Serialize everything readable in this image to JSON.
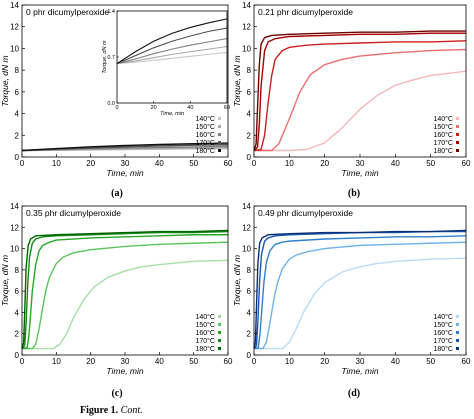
{
  "chart_data": [
    {
      "type": "line",
      "panel_label": "(a)",
      "title": "0 phr dicumylperoxide",
      "xlabel": "Time, min",
      "ylabel": "Torque, dN m",
      "xlim": [
        0,
        60
      ],
      "ylim": [
        0,
        14
      ],
      "xticks": [
        "0",
        "10",
        "20",
        "30",
        "40",
        "50",
        "60"
      ],
      "yticks": [
        "0",
        "2",
        "4",
        "6",
        "8",
        "10",
        "12",
        "14"
      ],
      "legend_position": "bottom-right",
      "series": [
        {
          "name": "140°C",
          "color": "#c8c8c8",
          "x": [
            0,
            10,
            20,
            30,
            40,
            50,
            60
          ],
          "y": [
            0.6,
            0.62,
            0.65,
            0.68,
            0.71,
            0.74,
            0.77
          ]
        },
        {
          "name": "150°C",
          "color": "#a8a8a8",
          "x": [
            0,
            10,
            20,
            30,
            40,
            50,
            60
          ],
          "y": [
            0.6,
            0.64,
            0.69,
            0.74,
            0.78,
            0.82,
            0.86
          ]
        },
        {
          "name": "160°C",
          "color": "#808080",
          "x": [
            0,
            10,
            20,
            30,
            40,
            50,
            60
          ],
          "y": [
            0.6,
            0.67,
            0.75,
            0.82,
            0.88,
            0.93,
            0.98
          ]
        },
        {
          "name": "170°C",
          "color": "#505050",
          "x": [
            0,
            10,
            20,
            30,
            40,
            50,
            60
          ],
          "y": [
            0.6,
            0.72,
            0.84,
            0.94,
            1.02,
            1.09,
            1.14
          ]
        },
        {
          "name": "180°C",
          "color": "#111111",
          "x": [
            0,
            10,
            20,
            30,
            40,
            50,
            60
          ],
          "y": [
            0.6,
            0.78,
            0.94,
            1.06,
            1.15,
            1.22,
            1.28
          ]
        }
      ],
      "inset": {
        "xlabel": "Time, min",
        "ylabel": "Torque, dN m",
        "xlim": [
          0,
          60
        ],
        "ylim": [
          0.0,
          1.4
        ],
        "xticks": [
          "0",
          "20",
          "40",
          "60"
        ],
        "yticks": [
          "0.0",
          "0.7",
          "1.4"
        ]
      }
    },
    {
      "type": "line",
      "panel_label": "(b)",
      "title": "0.21 phr dicumylperoxide",
      "xlabel": "Time, min",
      "ylabel": "Torque, dN m",
      "xlim": [
        0,
        60
      ],
      "ylim": [
        0,
        14
      ],
      "xticks": [
        "0",
        "10",
        "20",
        "30",
        "40",
        "50",
        "60"
      ],
      "yticks": [
        "0",
        "2",
        "4",
        "6",
        "8",
        "10",
        "12",
        "14"
      ],
      "legend_position": "bottom-right",
      "series": [
        {
          "name": "140°C",
          "color": "#f4b7b7",
          "x": [
            0,
            10,
            15,
            20,
            25,
            30,
            35,
            40,
            45,
            50,
            60
          ],
          "y": [
            0.6,
            0.6,
            0.7,
            1.3,
            2.7,
            4.4,
            5.7,
            6.6,
            7.1,
            7.5,
            7.9
          ]
        },
        {
          "name": "150°C",
          "color": "#e97070",
          "x": [
            0,
            5,
            7,
            10,
            13,
            16,
            20,
            25,
            30,
            40,
            50,
            60
          ],
          "y": [
            0.6,
            0.6,
            1.2,
            3.5,
            6.0,
            7.6,
            8.5,
            9.0,
            9.3,
            9.6,
            9.8,
            9.9
          ]
        },
        {
          "name": "160°C",
          "color": "#cc1f1f",
          "x": [
            0,
            2,
            3,
            4,
            5,
            6,
            8,
            10,
            15,
            20,
            30,
            40,
            50,
            60
          ],
          "y": [
            0.6,
            0.7,
            2.0,
            5.0,
            7.5,
            9.0,
            9.8,
            10.1,
            10.3,
            10.4,
            10.5,
            10.6,
            10.6,
            10.7
          ]
        },
        {
          "name": "170°C",
          "color": "#a30000",
          "x": [
            0,
            1,
            1.5,
            2,
            3,
            4,
            6,
            10,
            20,
            30,
            40,
            50,
            60
          ],
          "y": [
            0.6,
            0.9,
            3.0,
            6.5,
            9.8,
            10.6,
            10.9,
            11.1,
            11.2,
            11.3,
            11.3,
            11.4,
            11.4
          ]
        },
        {
          "name": "180°C",
          "color": "#6e0000",
          "x": [
            0,
            0.6,
            1,
            1.5,
            2,
            3,
            5,
            10,
            20,
            30,
            40,
            50,
            60
          ],
          "y": [
            0.6,
            1.2,
            4.5,
            8.5,
            10.4,
            11.0,
            11.2,
            11.3,
            11.4,
            11.5,
            11.5,
            11.6,
            11.6
          ]
        }
      ]
    },
    {
      "type": "line",
      "panel_label": "(c)",
      "title": "0.35 phr dicumylperoxide",
      "xlabel": "Time, min",
      "ylabel": "Torque, dN m",
      "xlim": [
        0,
        60
      ],
      "ylim": [
        0,
        14
      ],
      "xticks": [
        "0",
        "10",
        "20",
        "30",
        "40",
        "50",
        "60"
      ],
      "yticks": [
        "0",
        "2",
        "4",
        "6",
        "8",
        "10",
        "12",
        "14"
      ],
      "legend_position": "bottom-right",
      "series": [
        {
          "name": "140°C",
          "color": "#a6dea6",
          "x": [
            0,
            9,
            11,
            13,
            15,
            18,
            21,
            25,
            30,
            35,
            40,
            50,
            60
          ],
          "y": [
            0.6,
            0.6,
            1.0,
            2.0,
            3.5,
            5.2,
            6.4,
            7.3,
            7.9,
            8.3,
            8.5,
            8.8,
            8.9
          ]
        },
        {
          "name": "150°C",
          "color": "#5cc45c",
          "x": [
            0,
            3,
            4,
            5,
            6,
            7,
            8,
            10,
            12,
            15,
            20,
            30,
            40,
            50,
            60
          ],
          "y": [
            0.6,
            0.6,
            1.0,
            2.5,
            4.4,
            6.1,
            7.3,
            8.6,
            9.2,
            9.6,
            9.9,
            10.2,
            10.4,
            10.5,
            10.6
          ]
        },
        {
          "name": "160°C",
          "color": "#28a828",
          "x": [
            0,
            1.5,
            2,
            2.5,
            3,
            4,
            5,
            6,
            8,
            10,
            20,
            30,
            40,
            50,
            60
          ],
          "y": [
            0.6,
            0.7,
            1.8,
            3.8,
            6.0,
            8.5,
            9.8,
            10.3,
            10.6,
            10.8,
            11.0,
            11.1,
            11.2,
            11.3,
            11.3
          ]
        },
        {
          "name": "170°C",
          "color": "#138a13",
          "x": [
            0,
            0.8,
            1.2,
            1.7,
            2.2,
            3,
            4,
            6,
            10,
            20,
            30,
            40,
            50,
            60
          ],
          "y": [
            0.6,
            0.9,
            3.0,
            6.8,
            9.2,
            10.5,
            10.9,
            11.1,
            11.2,
            11.3,
            11.4,
            11.5,
            11.5,
            11.6
          ]
        },
        {
          "name": "180°C",
          "color": "#006400",
          "x": [
            0,
            0.5,
            0.8,
            1.2,
            1.8,
            2.5,
            4,
            10,
            20,
            30,
            40,
            50,
            60
          ],
          "y": [
            0.6,
            1.2,
            4.2,
            8.2,
            10.3,
            10.9,
            11.2,
            11.3,
            11.4,
            11.5,
            11.6,
            11.6,
            11.7
          ]
        }
      ]
    },
    {
      "type": "line",
      "panel_label": "(d)",
      "title": "0.49 phr dicumylperoxide",
      "xlabel": "Time, min",
      "ylabel": "Torque, dN m",
      "xlim": [
        0,
        60
      ],
      "ylim": [
        0,
        14
      ],
      "xticks": [
        "0",
        "10",
        "20",
        "30",
        "40",
        "50",
        "60"
      ],
      "yticks": [
        "0",
        "2",
        "4",
        "6",
        "8",
        "10",
        "12",
        "14"
      ],
      "legend_position": "bottom-right",
      "series": [
        {
          "name": "140°C",
          "color": "#b9dbf5",
          "x": [
            0,
            8,
            10,
            12,
            14,
            17,
            20,
            25,
            30,
            35,
            40,
            50,
            60
          ],
          "y": [
            0.6,
            0.6,
            1.2,
            2.5,
            4.0,
            5.7,
            6.8,
            7.8,
            8.3,
            8.6,
            8.8,
            9.0,
            9.1
          ]
        },
        {
          "name": "150°C",
          "color": "#6fb2e6",
          "x": [
            0,
            2.5,
            3.5,
            4.5,
            5.5,
            6.5,
            8,
            10,
            12,
            15,
            20,
            30,
            40,
            50,
            60
          ],
          "y": [
            0.6,
            0.6,
            1.2,
            3.0,
            5.0,
            6.6,
            8.1,
            9.0,
            9.4,
            9.7,
            10.0,
            10.3,
            10.4,
            10.5,
            10.6
          ]
        },
        {
          "name": "160°C",
          "color": "#2f80cc",
          "x": [
            0,
            1.2,
            1.7,
            2.2,
            2.8,
            3.5,
            4.5,
            6,
            8,
            10,
            20,
            30,
            40,
            50,
            60
          ],
          "y": [
            0.6,
            0.7,
            2.0,
            4.2,
            6.8,
            8.7,
            9.8,
            10.4,
            10.6,
            10.7,
            10.9,
            11.0,
            11.1,
            11.1,
            11.2
          ]
        },
        {
          "name": "170°C",
          "color": "#1b55a8",
          "x": [
            0,
            0.7,
            1.1,
            1.6,
            2.1,
            3,
            4,
            6,
            10,
            20,
            30,
            40,
            50,
            60
          ],
          "y": [
            0.6,
            0.9,
            3.2,
            7.0,
            9.4,
            10.7,
            11.0,
            11.2,
            11.3,
            11.4,
            11.5,
            11.5,
            11.6,
            11.6
          ]
        },
        {
          "name": "180°C",
          "color": "#0a2f7a",
          "x": [
            0,
            0.4,
            0.7,
            1.1,
            1.6,
            2.3,
            4,
            10,
            20,
            30,
            40,
            50,
            60
          ],
          "y": [
            0.6,
            1.2,
            4.5,
            8.6,
            10.5,
            11.0,
            11.3,
            11.4,
            11.5,
            11.5,
            11.6,
            11.6,
            11.7
          ]
        }
      ]
    }
  ],
  "caption": {
    "label": "Figure 1.",
    "suffix": "Cont."
  }
}
